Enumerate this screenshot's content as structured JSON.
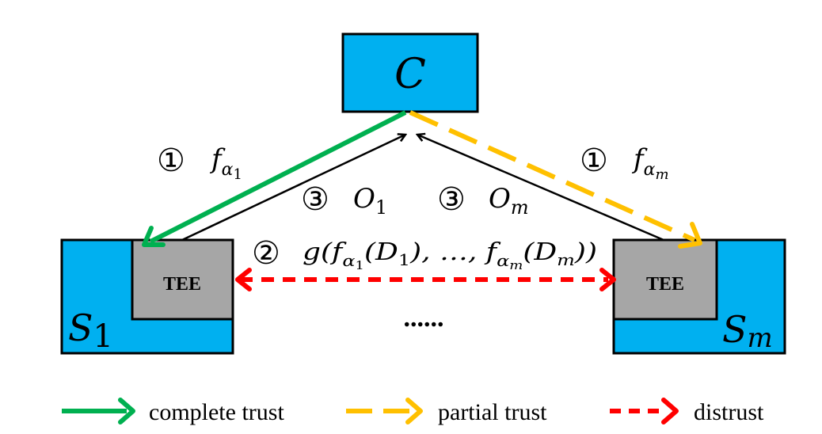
{
  "colors": {
    "node_fill": "#00B0F0",
    "tee_fill": "#A6A6A6",
    "complete": "#00B050",
    "partial": "#FFC000",
    "distrust": "#FF0000",
    "line": "#000000"
  },
  "nodes": {
    "client": {
      "label": "C"
    },
    "server_first": {
      "label": "S",
      "subscript": "1",
      "tee": "TEE"
    },
    "server_last": {
      "label": "S",
      "subscript": "m",
      "tee": "TEE"
    }
  },
  "edges": {
    "step1_left": {
      "circle": "①",
      "func": "f",
      "sub": "α",
      "subsub": "1",
      "trust": "complete"
    },
    "step1_right": {
      "circle": "①",
      "func": "f",
      "sub": "α",
      "subsub": "m",
      "trust": "partial"
    },
    "step3_left": {
      "circle": "③",
      "var": "O",
      "sub": "1"
    },
    "step3_right": {
      "circle": "③",
      "var": "O",
      "sub": "m"
    },
    "step2": {
      "circle": "②",
      "pre": "g(f",
      "sub1": "α",
      "subsub1": "1",
      "mid1": "(D",
      "d_sub1": "1",
      "mid2": "), …, f",
      "sub2": "α",
      "subsub2": "m",
      "mid3": "(D",
      "d_sub2": "m",
      "post": "))",
      "trust": "distrust"
    }
  },
  "ellipsis": "......",
  "legend": [
    {
      "label": "complete trust",
      "style": "complete"
    },
    {
      "label": "partial trust",
      "style": "partial"
    },
    {
      "label": "distrust",
      "style": "distrust"
    }
  ]
}
